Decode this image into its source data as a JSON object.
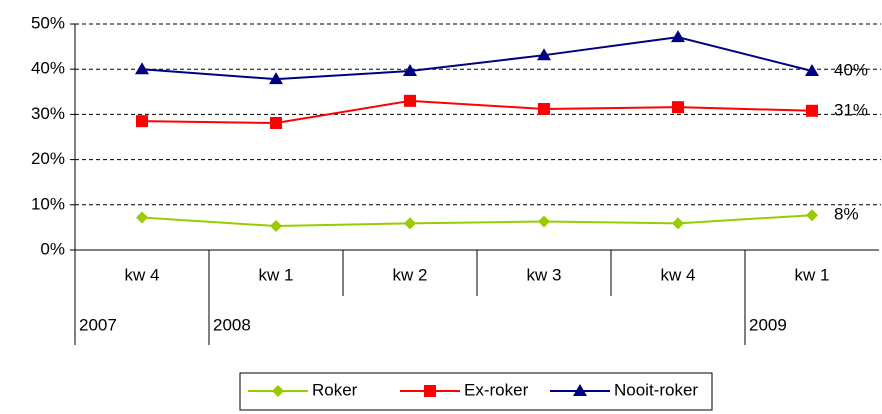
{
  "chart_data": {
    "type": "line",
    "categories": [
      "kw 4",
      "kw 1",
      "kw 2",
      "kw 3",
      "kw 4",
      "kw 1"
    ],
    "x_groups": [
      "2007",
      "2008",
      null,
      null,
      null,
      "2009"
    ],
    "series": [
      {
        "name": "Roker",
        "color": "#99cc00",
        "marker": "diamond",
        "values": [
          7.2,
          5.3,
          5.9,
          6.3,
          5.9,
          7.7
        ],
        "value_labels": [
          null,
          null,
          null,
          null,
          null,
          "8%"
        ]
      },
      {
        "name": "Ex-roker",
        "color": "#ff0000",
        "marker": "square",
        "values": [
          28.5,
          28.1,
          33.0,
          31.2,
          31.6,
          30.8
        ],
        "value_labels": [
          null,
          null,
          null,
          null,
          null,
          "31%"
        ]
      },
      {
        "name": "Nooit-roker",
        "color": "#000080",
        "marker": "triangle",
        "values": [
          40.0,
          37.8,
          39.6,
          43.1,
          47.1,
          39.6
        ],
        "value_labels": [
          null,
          null,
          null,
          null,
          null,
          "40%"
        ]
      }
    ],
    "ylim": [
      0,
      50
    ],
    "yticks": [
      {
        "value": 0,
        "label": "0%"
      },
      {
        "value": 10,
        "label": "10%"
      },
      {
        "value": 20,
        "label": "20%"
      },
      {
        "value": 30,
        "label": "30%"
      },
      {
        "value": 40,
        "label": "40%"
      },
      {
        "value": 50,
        "label": "50%"
      }
    ],
    "grid": true,
    "legend": "bottom"
  }
}
